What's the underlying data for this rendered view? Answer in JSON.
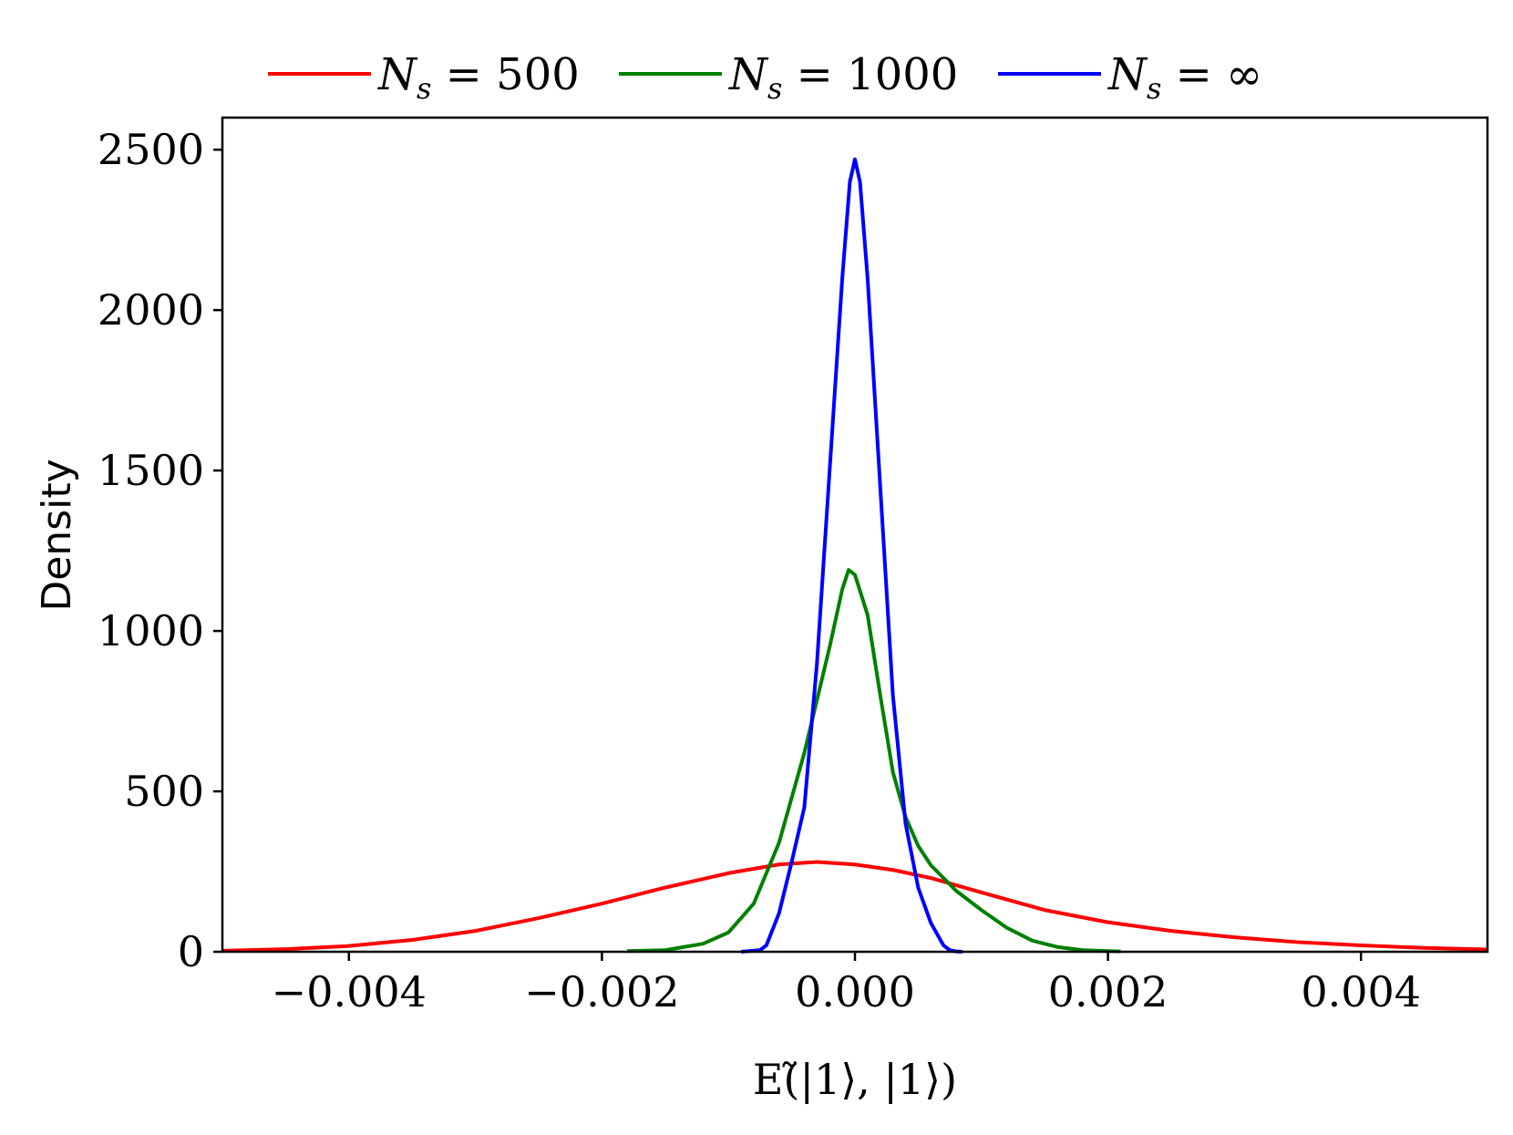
{
  "chart_data": {
    "type": "line",
    "title": "",
    "xlabel": "E(̃|1⟩, |1⟩)",
    "ylabel": "Density",
    "xlim": [
      -0.005,
      0.005
    ],
    "ylim": [
      0,
      2600
    ],
    "x_ticks": [
      -0.004,
      -0.002,
      0.0,
      0.002,
      0.004
    ],
    "x_tick_labels": [
      "−0.004",
      "−0.002",
      "0.000",
      "0.002",
      "0.004"
    ],
    "y_ticks": [
      0,
      500,
      1000,
      1500,
      2000,
      2500
    ],
    "y_tick_labels": [
      "0",
      "500",
      "1000",
      "1500",
      "2000",
      "2500"
    ],
    "grid": false,
    "legend_position": "top, outside plot, horizontal",
    "series": [
      {
        "name": "N_s = 500",
        "legend_main": "N",
        "legend_sub": "s",
        "legend_rest": " = 500",
        "color": "#ff0000",
        "points": [
          [
            -0.005,
            3
          ],
          [
            -0.0045,
            8
          ],
          [
            -0.004,
            18
          ],
          [
            -0.0035,
            37
          ],
          [
            -0.003,
            65
          ],
          [
            -0.0025,
            105
          ],
          [
            -0.002,
            150
          ],
          [
            -0.0015,
            200
          ],
          [
            -0.001,
            245
          ],
          [
            -0.0006,
            272
          ],
          [
            -0.0003,
            280
          ],
          [
            0.0,
            272
          ],
          [
            0.0003,
            255
          ],
          [
            0.0006,
            230
          ],
          [
            0.001,
            185
          ],
          [
            0.0015,
            130
          ],
          [
            0.002,
            92
          ],
          [
            0.0025,
            65
          ],
          [
            0.003,
            45
          ],
          [
            0.0035,
            30
          ],
          [
            0.004,
            20
          ],
          [
            0.0045,
            12
          ],
          [
            0.005,
            7
          ]
        ]
      },
      {
        "name": "N_s = 1000",
        "legend_main": "N",
        "legend_sub": "s",
        "legend_rest": " = 1000",
        "color": "#008000",
        "points": [
          [
            -0.0018,
            2
          ],
          [
            -0.0015,
            5
          ],
          [
            -0.0012,
            25
          ],
          [
            -0.001,
            60
          ],
          [
            -0.0008,
            150
          ],
          [
            -0.0006,
            340
          ],
          [
            -0.0004,
            620
          ],
          [
            -0.0002,
            950
          ],
          [
            -0.0001,
            1130
          ],
          [
            -5e-05,
            1190
          ],
          [
            0.0,
            1175
          ],
          [
            0.0001,
            1050
          ],
          [
            0.0002,
            800
          ],
          [
            0.0003,
            560
          ],
          [
            0.0004,
            420
          ],
          [
            0.0005,
            330
          ],
          [
            0.0006,
            270
          ],
          [
            0.0008,
            190
          ],
          [
            0.001,
            130
          ],
          [
            0.0012,
            75
          ],
          [
            0.0014,
            35
          ],
          [
            0.0016,
            15
          ],
          [
            0.0018,
            5
          ],
          [
            0.002,
            2
          ],
          [
            0.0021,
            1
          ]
        ]
      },
      {
        "name": "N_s = ∞",
        "legend_main": "N",
        "legend_sub": "s",
        "legend_rest": " = ∞",
        "color": "#0000ff",
        "points": [
          [
            -0.0009,
            0
          ],
          [
            -0.00075,
            5
          ],
          [
            -0.0007,
            20
          ],
          [
            -0.0006,
            120
          ],
          [
            -0.0005,
            280
          ],
          [
            -0.0004,
            450
          ],
          [
            -0.0003,
            900
          ],
          [
            -0.0002,
            1500
          ],
          [
            -0.0001,
            2100
          ],
          [
            -4e-05,
            2400
          ],
          [
            0.0,
            2470
          ],
          [
            4e-05,
            2400
          ],
          [
            0.0001,
            2100
          ],
          [
            0.0002,
            1450
          ],
          [
            0.0003,
            800
          ],
          [
            0.0004,
            400
          ],
          [
            0.0005,
            200
          ],
          [
            0.0006,
            90
          ],
          [
            0.0007,
            20
          ],
          [
            0.00075,
            5
          ],
          [
            0.0008,
            1
          ],
          [
            0.00085,
            0
          ]
        ]
      }
    ]
  }
}
